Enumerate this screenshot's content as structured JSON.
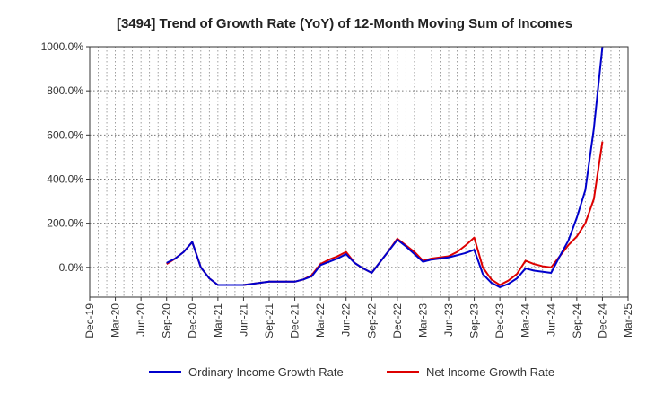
{
  "chart_data": {
    "type": "line",
    "title": "[3494]  Trend of Growth Rate (YoY) of 12-Month Moving Sum of Incomes",
    "xlabel": "",
    "ylabel": "",
    "ylim": [
      -135,
      1000
    ],
    "yticks": [
      0,
      200,
      400,
      600,
      800,
      1000
    ],
    "ytick_labels": [
      "0.0%",
      "200.0%",
      "400.0%",
      "600.0%",
      "800.0%",
      "1000.0%"
    ],
    "x_start": "Dec-19",
    "x_months": 63,
    "xtick_labels": [
      "Dec-19",
      "Mar-20",
      "Jun-20",
      "Sep-20",
      "Dec-20",
      "Mar-21",
      "Jun-21",
      "Sep-21",
      "Dec-21",
      "Mar-22",
      "Jun-22",
      "Sep-22",
      "Dec-22",
      "Mar-23",
      "Jun-23",
      "Sep-23",
      "Dec-23",
      "Mar-24",
      "Jun-24",
      "Sep-24",
      "Dec-24",
      "Mar-25"
    ],
    "x": [
      "Sep-20",
      "Oct-20",
      "Nov-20",
      "Dec-20",
      "Jan-21",
      "Feb-21",
      "Mar-21",
      "Apr-21",
      "May-21",
      "Jun-21",
      "Jul-21",
      "Aug-21",
      "Sep-21",
      "Oct-21",
      "Nov-21",
      "Dec-21",
      "Jan-22",
      "Feb-22",
      "Mar-22",
      "Apr-22",
      "May-22",
      "Jun-22",
      "Jul-22",
      "Aug-22",
      "Sep-22",
      "Oct-22",
      "Nov-22",
      "Dec-22",
      "Jan-23",
      "Feb-23",
      "Mar-23",
      "Apr-23",
      "May-23",
      "Jun-23",
      "Jul-23",
      "Aug-23",
      "Sep-23",
      "Oct-23",
      "Nov-23",
      "Dec-23",
      "Jan-24",
      "Feb-24",
      "Mar-24",
      "Apr-24",
      "May-24",
      "Jun-24",
      "Jul-24",
      "Aug-24",
      "Sep-24",
      "Oct-24",
      "Nov-24",
      "Dec-24"
    ],
    "grid": true,
    "legend_position": "bottom",
    "series": [
      {
        "name": "Ordinary Income Growth Rate",
        "color": "#0000cc",
        "values": [
          20,
          40,
          70,
          115,
          0,
          -50,
          -80,
          -80,
          -80,
          -80,
          -75,
          -70,
          -65,
          -65,
          -65,
          -65,
          -55,
          -40,
          10,
          25,
          40,
          60,
          20,
          -5,
          -25,
          25,
          75,
          125,
          95,
          60,
          25,
          35,
          40,
          45,
          55,
          65,
          80,
          -30,
          -70,
          -90,
          -75,
          -50,
          -5,
          -15,
          -20,
          -25,
          50,
          120,
          225,
          350,
          630,
          1000
        ]
      },
      {
        "name": "Net Income Growth Rate",
        "color": "#dd0000",
        "values": [
          15,
          40,
          70,
          115,
          0,
          -50,
          -80,
          -80,
          -80,
          -80,
          -75,
          -70,
          -65,
          -65,
          -65,
          -65,
          -55,
          -35,
          15,
          35,
          50,
          70,
          20,
          -5,
          -25,
          25,
          75,
          130,
          100,
          70,
          30,
          40,
          45,
          50,
          70,
          100,
          135,
          0,
          -55,
          -80,
          -60,
          -30,
          30,
          15,
          5,
          0,
          50,
          100,
          140,
          200,
          310,
          570
        ]
      }
    ]
  }
}
